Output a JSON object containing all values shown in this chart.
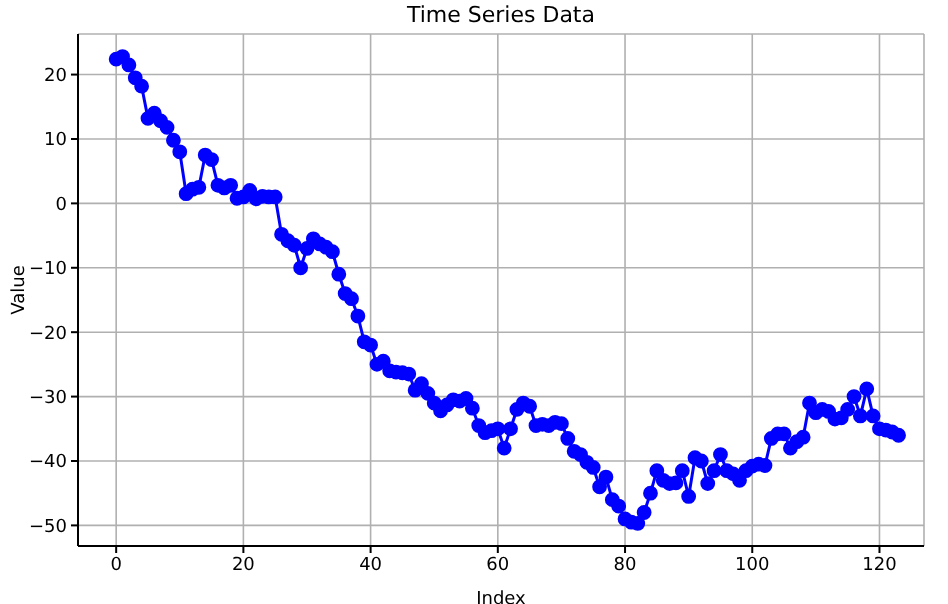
{
  "chart_data": {
    "type": "line",
    "title": "Time Series Data",
    "xlabel": "Index",
    "ylabel": "Value",
    "x": [
      0,
      1,
      2,
      3,
      4,
      5,
      6,
      7,
      8,
      9,
      10,
      11,
      12,
      13,
      14,
      15,
      16,
      17,
      18,
      19,
      20,
      21,
      22,
      23,
      24,
      25,
      26,
      27,
      28,
      29,
      30,
      31,
      32,
      33,
      34,
      35,
      36,
      37,
      38,
      39,
      40,
      41,
      42,
      43,
      44,
      45,
      46,
      47,
      48,
      49,
      50,
      51,
      52,
      53,
      54,
      55,
      56,
      57,
      58,
      59,
      60,
      61,
      62,
      63,
      64,
      65,
      66,
      67,
      68,
      69,
      70,
      71,
      72,
      73,
      74,
      75,
      76,
      77,
      78,
      79,
      80,
      81,
      82,
      83,
      84,
      85,
      86,
      87,
      88,
      89,
      90,
      91,
      92,
      93,
      94,
      95,
      96,
      97,
      98,
      99,
      100,
      101,
      102,
      103,
      104,
      105,
      106,
      107,
      108,
      109,
      110,
      111,
      112,
      113,
      114,
      115,
      116,
      117,
      118,
      119,
      120,
      121,
      122,
      123
    ],
    "series": [
      {
        "color": "#0000ff",
        "values": [
          22.4,
          22.8,
          21.5,
          19.5,
          18.2,
          13.2,
          14,
          12.8,
          11.8,
          9.8,
          8,
          1.5,
          2.2,
          2.5,
          7.5,
          6.8,
          2.8,
          2.4,
          2.8,
          0.8,
          1,
          2,
          0.7,
          1.1,
          1,
          1,
          -4.8,
          -5.8,
          -6.5,
          -10,
          -7,
          -5.5,
          -6.3,
          -6.8,
          -7.5,
          -11,
          -14,
          -14.8,
          -17.5,
          -21.5,
          -22,
          -25,
          -24.5,
          -26,
          -26.2,
          -26.3,
          -26.5,
          -29,
          -28,
          -29.5,
          -31,
          -32.2,
          -31.3,
          -30.5,
          -30.7,
          -30.3,
          -31.8,
          -34.5,
          -35.6,
          -35.3,
          -35,
          -38,
          -35,
          -32,
          -31,
          -31.5,
          -34.5,
          -34.3,
          -34.5,
          -34,
          -34.2,
          -36.5,
          -38.5,
          -39,
          -40.2,
          -41,
          -44,
          -42.5,
          -46,
          -47,
          -49,
          -49.5,
          -49.7,
          -48,
          -45,
          -41.5,
          -43,
          -43.5,
          -43.4,
          -41.5,
          -45.5,
          -39.5,
          -40,
          -43.5,
          -41.5,
          -39,
          -41.5,
          -42,
          -43,
          -41.5,
          -40.8,
          -40.5,
          -40.7,
          -36.5,
          -35.8,
          -35.8,
          -38,
          -37,
          -36.3,
          -31,
          -32.5,
          -32,
          -32.3,
          -33.5,
          -33.3,
          -32,
          -30,
          -33,
          -28.8,
          -33,
          -35,
          -35.2,
          -35.5,
          -36
        ]
      }
    ],
    "xlim": [
      -6,
      127
    ],
    "xticks": [
      0,
      20,
      40,
      60,
      80,
      100,
      120
    ],
    "ylim": [
      -53.2,
      26.3
    ],
    "yticks": [
      -50,
      -40,
      -30,
      -20,
      -10,
      0,
      10,
      20
    ],
    "grid": true,
    "marker": "circle",
    "line_style": "solid",
    "legend": false
  }
}
